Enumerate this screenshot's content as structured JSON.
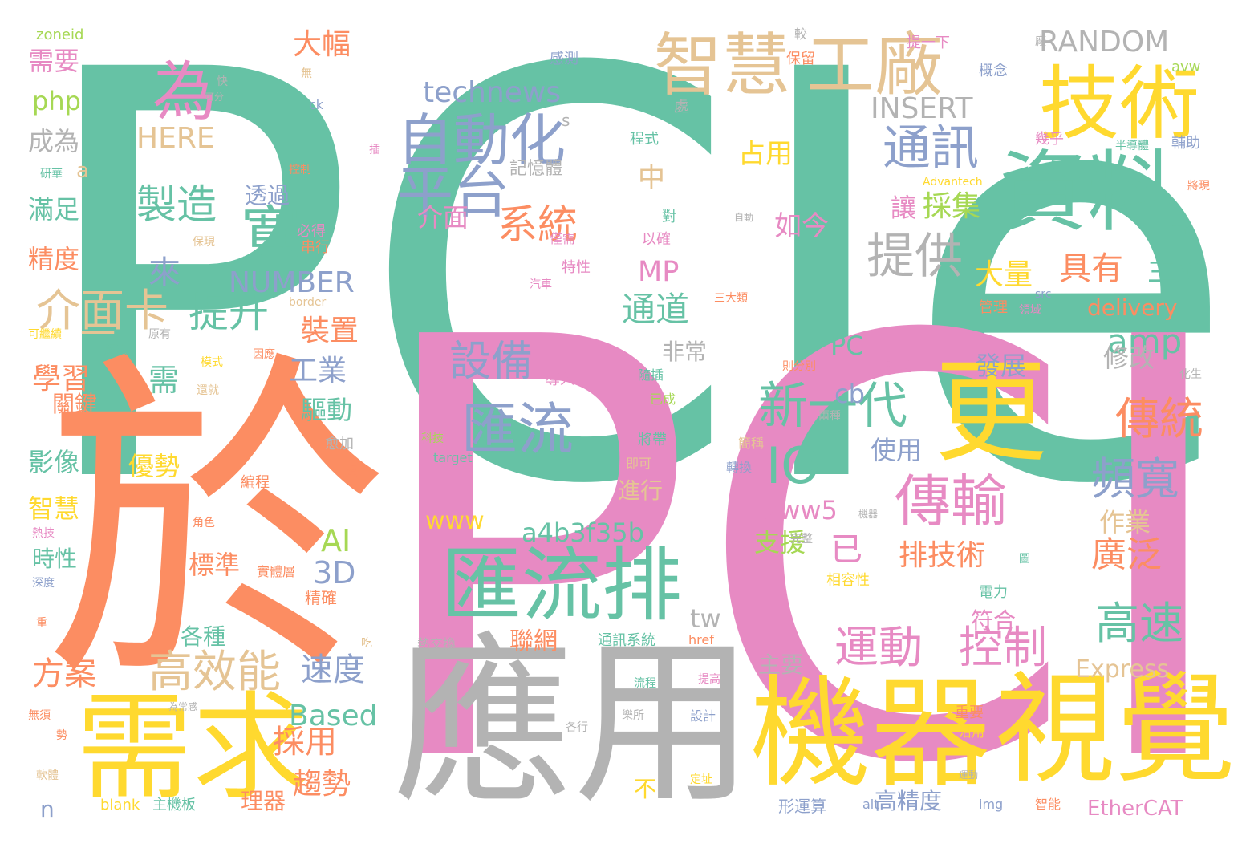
{
  "palette": {
    "teal": "#66c2a5",
    "orange": "#fc8d62",
    "blue": "#8da0cb",
    "pink": "#e78ac3",
    "green": "#a6d854",
    "yellow": "#ffd92f",
    "tan": "#e5c494",
    "gray": "#b3b3b3"
  },
  "words": [
    {
      "text": "PCIe",
      "color": "teal"
    },
    {
      "text": "PCI",
      "color": "pink"
    },
    {
      "text": "於",
      "color": "orange"
    },
    {
      "text": "應用",
      "color": "gray"
    },
    {
      "text": "機器",
      "color": "yellow"
    },
    {
      "text": "視覺",
      "color": "yellow"
    },
    {
      "text": "需求",
      "color": "yellow"
    },
    {
      "text": "資料",
      "color": "teal"
    },
    {
      "text": "技術",
      "color": "yellow"
    },
    {
      "text": "更",
      "color": "yellow"
    },
    {
      "text": "匯流排",
      "color": "teal"
    },
    {
      "text": "智慧",
      "color": "tan"
    },
    {
      "text": "工廠",
      "color": "tan"
    },
    {
      "text": "自動化",
      "color": "blue"
    },
    {
      "text": "平台",
      "color": "blue"
    },
    {
      "text": "為",
      "color": "pink"
    },
    {
      "text": "匯流",
      "color": "blue"
    },
    {
      "text": "傳輸",
      "color": "pink"
    },
    {
      "text": "新一代",
      "color": "teal"
    },
    {
      "text": "IO",
      "color": "teal"
    },
    {
      "text": "通訊",
      "color": "blue"
    },
    {
      "text": "提供",
      "color": "gray"
    },
    {
      "text": "系統",
      "color": "orange"
    },
    {
      "text": "寬",
      "color": "teal"
    },
    {
      "text": "製造",
      "color": "teal"
    },
    {
      "text": "提升",
      "color": "teal"
    },
    {
      "text": "介面卡",
      "color": "tan"
    },
    {
      "text": "高效能",
      "color": "tan"
    },
    {
      "text": "運動",
      "color": "pink"
    },
    {
      "text": "控制",
      "color": "pink"
    },
    {
      "text": "高速",
      "color": "teal"
    },
    {
      "text": "頻寬",
      "color": "blue"
    },
    {
      "text": "傳統",
      "color": "orange"
    },
    {
      "text": "設備",
      "color": "blue"
    },
    {
      "text": "technews",
      "color": "blue"
    },
    {
      "text": "RANDOM",
      "color": "gray"
    },
    {
      "text": "INSERT",
      "color": "gray"
    },
    {
      "text": "HERE",
      "color": "tan"
    },
    {
      "text": "NUMBER",
      "color": "blue"
    },
    {
      "text": "Express",
      "color": "tan"
    },
    {
      "text": "EtherCAT",
      "color": "pink"
    },
    {
      "text": "delivery",
      "color": "orange"
    },
    {
      "text": "Based",
      "color": "teal"
    },
    {
      "text": "amp",
      "color": "teal"
    },
    {
      "text": "a4b3f35b",
      "color": "teal"
    },
    {
      "text": "www5",
      "color": "pink"
    },
    {
      "text": "www",
      "color": "yellow"
    },
    {
      "text": "3D",
      "color": "blue"
    },
    {
      "text": "AI",
      "color": "green"
    },
    {
      "text": "MP",
      "color": "pink"
    },
    {
      "text": "php",
      "color": "green"
    },
    {
      "text": "cb",
      "color": "blue"
    },
    {
      "text": "tw",
      "color": "gray"
    },
    {
      "text": "PC",
      "color": "teal"
    },
    {
      "text": "方案",
      "color": "orange"
    },
    {
      "text": "速度",
      "color": "blue"
    },
    {
      "text": "採用",
      "color": "orange"
    },
    {
      "text": "趨勢",
      "color": "orange"
    },
    {
      "text": "具有",
      "color": "orange"
    },
    {
      "text": "大量",
      "color": "yellow"
    },
    {
      "text": "主流",
      "color": "teal"
    },
    {
      "text": "廣泛",
      "color": "orange"
    },
    {
      "text": "排技術",
      "color": "orange"
    },
    {
      "text": "已",
      "color": "pink"
    },
    {
      "text": "支援",
      "color": "green"
    },
    {
      "text": "通道",
      "color": "teal"
    },
    {
      "text": "裝置",
      "color": "orange"
    },
    {
      "text": "工業",
      "color": "blue"
    },
    {
      "text": "驅動",
      "color": "teal"
    },
    {
      "text": "學習",
      "color": "orange"
    },
    {
      "text": "需",
      "color": "teal"
    },
    {
      "text": "來",
      "color": "blue"
    },
    {
      "text": "如今",
      "color": "pink"
    },
    {
      "text": "讓",
      "color": "pink"
    },
    {
      "text": "採集",
      "color": "green"
    },
    {
      "text": "占用",
      "color": "yellow"
    },
    {
      "text": "中",
      "color": "tan"
    },
    {
      "text": "介面",
      "color": "pink"
    },
    {
      "text": "一",
      "color": "tan"
    },
    {
      "text": "大幅",
      "color": "orange"
    },
    {
      "text": "需要",
      "color": "pink"
    },
    {
      "text": "成為",
      "color": "gray"
    },
    {
      "text": "滿足",
      "color": "teal"
    },
    {
      "text": "精度",
      "color": "orange"
    },
    {
      "text": "a",
      "color": "tan"
    },
    {
      "text": "影像",
      "color": "teal"
    },
    {
      "text": "優勢",
      "color": "yellow"
    },
    {
      "text": "智慧",
      "color": "yellow"
    },
    {
      "text": "時性",
      "color": "teal"
    },
    {
      "text": "標準",
      "color": "orange"
    },
    {
      "text": "各種",
      "color": "teal"
    },
    {
      "text": "修改",
      "color": "gray"
    },
    {
      "text": "發展",
      "color": "blue"
    },
    {
      "text": "作業",
      "color": "tan"
    },
    {
      "text": "使用",
      "color": "blue"
    },
    {
      "text": "非常",
      "color": "gray"
    },
    {
      "text": "進行",
      "color": "tan"
    },
    {
      "text": "符合",
      "color": "pink"
    },
    {
      "text": "聯網",
      "color": "orange"
    },
    {
      "text": "主要",
      "color": "gray"
    },
    {
      "text": "不",
      "color": "yellow"
    },
    {
      "text": "高精度",
      "color": "blue"
    },
    {
      "text": "理器",
      "color": "orange"
    },
    {
      "text": "透過",
      "color": "blue"
    },
    {
      "text": "記憶體",
      "color": "gray"
    },
    {
      "text": "s",
      "color": "gray"
    },
    {
      "text": "n",
      "color": "blue"
    },
    {
      "text": "zoneid",
      "color": "green"
    },
    {
      "text": "感測",
      "color": "blue"
    },
    {
      "text": "快",
      "color": "gray"
    },
    {
      "text": "可分",
      "color": "gray"
    },
    {
      "text": "無",
      "color": "tan"
    },
    {
      "text": "ck",
      "color": "blue"
    },
    {
      "text": "處",
      "color": "gray"
    },
    {
      "text": "較",
      "color": "gray"
    },
    {
      "text": "提一下",
      "color": "pink"
    },
    {
      "text": "廠",
      "color": "gray"
    },
    {
      "text": "保留",
      "color": "orange"
    },
    {
      "text": "概念",
      "color": "blue"
    },
    {
      "text": "avw",
      "color": "green"
    },
    {
      "text": "程式",
      "color": "teal"
    },
    {
      "text": "插",
      "color": "pink"
    },
    {
      "text": "幾乎",
      "color": "pink"
    },
    {
      "text": "半導體",
      "color": "teal"
    },
    {
      "text": "輔助",
      "color": "blue"
    },
    {
      "text": "研華",
      "color": "teal"
    },
    {
      "text": "控制",
      "color": "orange"
    },
    {
      "text": "Advantech",
      "color": "yellow"
    },
    {
      "text": "將現",
      "color": "orange"
    },
    {
      "text": "自動",
      "color": "gray"
    },
    {
      "text": "工廠",
      "color": "teal"
    },
    {
      "text": "必得",
      "color": "pink"
    },
    {
      "text": "串行",
      "color": "orange"
    },
    {
      "text": "對",
      "color": "teal"
    },
    {
      "text": "以確",
      "color": "pink"
    },
    {
      "text": "僅需",
      "color": "pink"
    },
    {
      "text": "特性",
      "color": "pink"
    },
    {
      "text": "保現",
      "color": "tan"
    },
    {
      "text": "汽車",
      "color": "pink"
    },
    {
      "text": "三大類",
      "color": "orange"
    },
    {
      "text": "src",
      "color": "blue"
    },
    {
      "text": "領域",
      "color": "pink"
    },
    {
      "text": "管理",
      "color": "orange"
    },
    {
      "text": "border",
      "color": "tan"
    },
    {
      "text": "可繼續",
      "color": "yellow"
    },
    {
      "text": "原有",
      "color": "gray"
    },
    {
      "text": "解決",
      "color": "teal"
    },
    {
      "text": "模式",
      "color": "yellow"
    },
    {
      "text": "因應",
      "color": "orange"
    },
    {
      "text": "還就",
      "color": "tan"
    },
    {
      "text": "關鍵",
      "color": "orange"
    },
    {
      "text": "導入",
      "color": "pink"
    },
    {
      "text": "隨插",
      "color": "teal"
    },
    {
      "text": "已成",
      "color": "green"
    },
    {
      "text": "則分別",
      "color": "orange"
    },
    {
      "text": "建基",
      "color": "pink"
    },
    {
      "text": "兩種",
      "color": "gray"
    },
    {
      "text": "化生",
      "color": "gray"
    },
    {
      "text": "科技",
      "color": "green"
    },
    {
      "text": "target",
      "color": "teal"
    },
    {
      "text": "將帶",
      "color": "teal"
    },
    {
      "text": "簡稱",
      "color": "tan"
    },
    {
      "text": "即可",
      "color": "tan"
    },
    {
      "text": "轉換",
      "color": "blue"
    },
    {
      "text": "愈加",
      "color": "gray"
    },
    {
      "text": "虛",
      "color": "orange"
    },
    {
      "text": "編程",
      "color": "orange"
    },
    {
      "text": "熱技",
      "color": "pink"
    },
    {
      "text": "角色",
      "color": "orange"
    },
    {
      "text": "機器",
      "color": "gray"
    },
    {
      "text": "完整",
      "color": "gray"
    },
    {
      "text": "深度",
      "color": "blue"
    },
    {
      "text": "實體層",
      "color": "orange"
    },
    {
      "text": "精確",
      "color": "orange"
    },
    {
      "text": "相容性",
      "color": "yellow"
    },
    {
      "text": "電力",
      "color": "teal"
    },
    {
      "text": "圖",
      "color": "teal"
    },
    {
      "text": "重",
      "color": "orange"
    },
    {
      "text": "吃",
      "color": "tan"
    },
    {
      "text": "熱交換",
      "color": "gray"
    },
    {
      "text": "通訊系統",
      "color": "teal"
    },
    {
      "text": "href",
      "color": "orange"
    },
    {
      "text": "流程",
      "color": "teal"
    },
    {
      "text": "提高",
      "color": "pink"
    },
    {
      "text": "無須",
      "color": "orange"
    },
    {
      "text": "為常感",
      "color": "gray"
    },
    {
      "text": "勢",
      "color": "orange"
    },
    {
      "text": "各行",
      "color": "gray"
    },
    {
      "text": "樂所",
      "color": "gray"
    },
    {
      "text": "設計",
      "color": "blue"
    },
    {
      "text": "重要",
      "color": "orange"
    },
    {
      "text": "沿用",
      "color": "yellow"
    },
    {
      "text": "軟體",
      "color": "tan"
    },
    {
      "text": "定址",
      "color": "yellow"
    },
    {
      "text": "運動",
      "color": "gray"
    },
    {
      "text": "blank",
      "color": "yellow"
    },
    {
      "text": "主機板",
      "color": "teal"
    },
    {
      "text": "形運算",
      "color": "blue"
    },
    {
      "text": "alt",
      "color": "blue"
    },
    {
      "text": "img",
      "color": "blue"
    },
    {
      "text": "智能",
      "color": "orange"
    }
  ]
}
